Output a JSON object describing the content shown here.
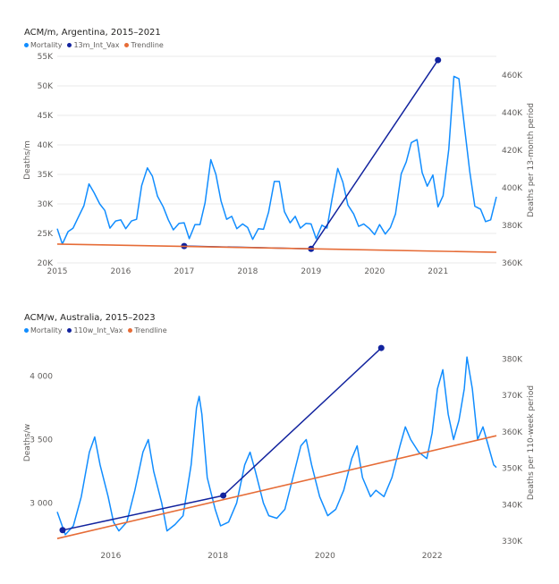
{
  "charts": [
    {
      "title": "ACM/m, Argentina, 2015–2021",
      "legend": [
        {
          "label": "Mortality",
          "color": "#118DFF"
        },
        {
          "label": "13m_Int_Vax",
          "color": "#12239E"
        },
        {
          "label": "Trendline",
          "color": "#E66C37"
        }
      ],
      "y_left_title": "Deaths/m",
      "y_right_title": "Deaths per 13-month period",
      "x_ticks": [
        {
          "label": "2015",
          "x": 2015
        },
        {
          "label": "2016",
          "x": 2016
        },
        {
          "label": "2017",
          "x": 2017
        },
        {
          "label": "2018",
          "x": 2018
        },
        {
          "label": "2019",
          "x": 2019
        },
        {
          "label": "2020",
          "x": 2020
        },
        {
          "label": "2021",
          "x": 2021
        }
      ],
      "y_left_ticks": [
        {
          "label": "20K",
          "v": 20000
        },
        {
          "label": "25K",
          "v": 25000
        },
        {
          "label": "30K",
          "v": 30000
        },
        {
          "label": "35K",
          "v": 35000
        },
        {
          "label": "40K",
          "v": 40000
        },
        {
          "label": "45K",
          "v": 45000
        },
        {
          "label": "50K",
          "v": 50000
        },
        {
          "label": "55K",
          "v": 55000
        }
      ],
      "y_right_ticks": [
        {
          "label": "360K",
          "v": 360000
        },
        {
          "label": "380K",
          "v": 380000
        },
        {
          "label": "400K",
          "v": 400000
        },
        {
          "label": "420K",
          "v": 420000
        },
        {
          "label": "440K",
          "v": 440000
        },
        {
          "label": "460K",
          "v": 460000
        }
      ]
    },
    {
      "title": "ACM/w, Australia, 2015–2023",
      "legend": [
        {
          "label": "Mortality",
          "color": "#118DFF"
        },
        {
          "label": "110w_Int_Vax",
          "color": "#12239E"
        },
        {
          "label": "Trendline",
          "color": "#E66C37"
        }
      ],
      "y_left_title": "Deaths/w",
      "y_right_title": "Deaths per 110-week period",
      "x_ticks": [
        {
          "label": "2016",
          "x": 2016
        },
        {
          "label": "2018",
          "x": 2018
        },
        {
          "label": "2020",
          "x": 2020
        },
        {
          "label": "2022",
          "x": 2022
        }
      ],
      "y_left_ticks": [
        {
          "label": "3 000",
          "v": 3000
        },
        {
          "label": "3 500",
          "v": 3500
        },
        {
          "label": "4 000",
          "v": 4000
        }
      ],
      "y_right_ticks": [
        {
          "label": "330K",
          "v": 330000
        },
        {
          "label": "340K",
          "v": 340000
        },
        {
          "label": "350K",
          "v": 350000
        },
        {
          "label": "360K",
          "v": 360000
        },
        {
          "label": "370K",
          "v": 370000
        },
        {
          "label": "380K",
          "v": 380000
        }
      ]
    }
  ],
  "chart_data": [
    {
      "type": "line",
      "title": "ACM/m, Argentina, 2015–2021",
      "xlabel": "",
      "ylabel": "Deaths/m",
      "y2label": "Deaths per 13-month period",
      "xlim": [
        2015,
        2021.92
      ],
      "ylim": [
        20000,
        55000
      ],
      "y2lim": [
        360000,
        470000
      ],
      "grid": true,
      "legend_position": "top-left",
      "series": [
        {
          "name": "Mortality",
          "axis": "left",
          "color": "#118DFF",
          "points": [
            [
              2015.0,
              25800
            ],
            [
              2015.08,
              23200
            ],
            [
              2015.17,
              25300
            ],
            [
              2015.25,
              25900
            ],
            [
              2015.33,
              27700
            ],
            [
              2015.42,
              29700
            ],
            [
              2015.5,
              33400
            ],
            [
              2015.58,
              31900
            ],
            [
              2015.67,
              30000
            ],
            [
              2015.75,
              28900
            ],
            [
              2015.83,
              25900
            ],
            [
              2015.92,
              27100
            ],
            [
              2016.0,
              27300
            ],
            [
              2016.08,
              25800
            ],
            [
              2016.17,
              27100
            ],
            [
              2016.25,
              27400
            ],
            [
              2016.33,
              33100
            ],
            [
              2016.42,
              36100
            ],
            [
              2016.5,
              34700
            ],
            [
              2016.58,
              31300
            ],
            [
              2016.67,
              29500
            ],
            [
              2016.75,
              27300
            ],
            [
              2016.83,
              25600
            ],
            [
              2016.92,
              26700
            ],
            [
              2017.0,
              26800
            ],
            [
              2017.08,
              24100
            ],
            [
              2017.17,
              26500
            ],
            [
              2017.25,
              26500
            ],
            [
              2017.33,
              30200
            ],
            [
              2017.42,
              37500
            ],
            [
              2017.5,
              35000
            ],
            [
              2017.58,
              30500
            ],
            [
              2017.67,
              27400
            ],
            [
              2017.75,
              27900
            ],
            [
              2017.83,
              25800
            ],
            [
              2017.92,
              26600
            ],
            [
              2018.0,
              26000
            ],
            [
              2018.08,
              24000
            ],
            [
              2018.17,
              25800
            ],
            [
              2018.25,
              25700
            ],
            [
              2018.33,
              28600
            ],
            [
              2018.42,
              33800
            ],
            [
              2018.5,
              33800
            ],
            [
              2018.58,
              28700
            ],
            [
              2018.67,
              26800
            ],
            [
              2018.75,
              27900
            ],
            [
              2018.83,
              25900
            ],
            [
              2018.92,
              26700
            ],
            [
              2019.0,
              26600
            ],
            [
              2019.08,
              24100
            ],
            [
              2019.17,
              26400
            ],
            [
              2019.25,
              25900
            ],
            [
              2019.33,
              30800
            ],
            [
              2019.42,
              36000
            ],
            [
              2019.5,
              33700
            ],
            [
              2019.58,
              29800
            ],
            [
              2019.67,
              28300
            ],
            [
              2019.75,
              26200
            ],
            [
              2019.83,
              26600
            ],
            [
              2019.92,
              25800
            ],
            [
              2020.0,
              24800
            ],
            [
              2020.08,
              26500
            ],
            [
              2020.17,
              24900
            ],
            [
              2020.25,
              26000
            ],
            [
              2020.33,
              28300
            ],
            [
              2020.42,
              35100
            ],
            [
              2020.5,
              37100
            ],
            [
              2020.58,
              40400
            ],
            [
              2020.67,
              40900
            ],
            [
              2020.75,
              35300
            ],
            [
              2020.83,
              33000
            ],
            [
              2020.92,
              34900
            ],
            [
              2021.0,
              29500
            ],
            [
              2021.08,
              31400
            ],
            [
              2021.17,
              39300
            ],
            [
              2021.25,
              51600
            ],
            [
              2021.33,
              51200
            ],
            [
              2021.42,
              42800
            ],
            [
              2021.5,
              35500
            ],
            [
              2021.58,
              29600
            ],
            [
              2021.67,
              29100
            ],
            [
              2021.75,
              27000
            ],
            [
              2021.83,
              27300
            ],
            [
              2021.92,
              31200
            ]
          ]
        },
        {
          "name": "13m_Int_Vax",
          "axis": "right",
          "color": "#12239E",
          "points": [
            [
              2017.0,
              369000
            ],
            [
              2019.0,
              367500
            ],
            [
              2021.0,
              468000
            ]
          ]
        },
        {
          "name": "Trendline",
          "axis": "left",
          "color": "#E66C37",
          "points": [
            [
              2015.0,
              23200
            ],
            [
              2021.92,
              21800
            ]
          ]
        }
      ]
    },
    {
      "type": "line",
      "title": "ACM/w, Australia, 2015–2023",
      "xlabel": "",
      "ylabel": "Deaths/w",
      "y2label": "Deaths per 110-week period",
      "xlim": [
        2015.0,
        2023.2
      ],
      "ylim": [
        2700,
        4250
      ],
      "y2lim": [
        330000,
        384000
      ],
      "grid": false,
      "legend_position": "top-left",
      "series": [
        {
          "name": "Mortality",
          "axis": "left",
          "color": "#118DFF",
          "points": [
            [
              2015.0,
              2930
            ],
            [
              2015.15,
              2750
            ],
            [
              2015.3,
              2820
            ],
            [
              2015.45,
              3050
            ],
            [
              2015.6,
              3400
            ],
            [
              2015.7,
              3520
            ],
            [
              2015.8,
              3300
            ],
            [
              2015.95,
              3050
            ],
            [
              2016.05,
              2850
            ],
            [
              2016.15,
              2780
            ],
            [
              2016.3,
              2850
            ],
            [
              2016.45,
              3100
            ],
            [
              2016.6,
              3400
            ],
            [
              2016.7,
              3500
            ],
            [
              2016.8,
              3250
            ],
            [
              2016.95,
              3000
            ],
            [
              2017.05,
              2780
            ],
            [
              2017.2,
              2830
            ],
            [
              2017.35,
              2900
            ],
            [
              2017.5,
              3300
            ],
            [
              2017.6,
              3750
            ],
            [
              2017.65,
              3840
            ],
            [
              2017.7,
              3700
            ],
            [
              2017.8,
              3200
            ],
            [
              2017.95,
              2950
            ],
            [
              2018.05,
              2820
            ],
            [
              2018.2,
              2850
            ],
            [
              2018.35,
              3000
            ],
            [
              2018.5,
              3300
            ],
            [
              2018.6,
              3400
            ],
            [
              2018.7,
              3250
            ],
            [
              2018.85,
              3000
            ],
            [
              2018.95,
              2900
            ],
            [
              2019.1,
              2880
            ],
            [
              2019.25,
              2950
            ],
            [
              2019.4,
              3200
            ],
            [
              2019.55,
              3450
            ],
            [
              2019.65,
              3500
            ],
            [
              2019.75,
              3300
            ],
            [
              2019.9,
              3050
            ],
            [
              2020.05,
              2900
            ],
            [
              2020.2,
              2950
            ],
            [
              2020.35,
              3100
            ],
            [
              2020.5,
              3350
            ],
            [
              2020.6,
              3450
            ],
            [
              2020.7,
              3200
            ],
            [
              2020.85,
              3050
            ],
            [
              2020.95,
              3100
            ],
            [
              2021.1,
              3050
            ],
            [
              2021.25,
              3200
            ],
            [
              2021.4,
              3450
            ],
            [
              2021.5,
              3600
            ],
            [
              2021.6,
              3500
            ],
            [
              2021.75,
              3400
            ],
            [
              2021.9,
              3350
            ],
            [
              2022.0,
              3550
            ],
            [
              2022.1,
              3900
            ],
            [
              2022.2,
              4050
            ],
            [
              2022.3,
              3700
            ],
            [
              2022.4,
              3500
            ],
            [
              2022.5,
              3650
            ],
            [
              2022.6,
              3900
            ],
            [
              2022.65,
              4150
            ],
            [
              2022.75,
              3900
            ],
            [
              2022.85,
              3500
            ],
            [
              2022.95,
              3600
            ],
            [
              2023.05,
              3450
            ],
            [
              2023.15,
              3300
            ],
            [
              2023.2,
              3280
            ]
          ]
        },
        {
          "name": "110w_Int_Vax",
          "axis": "right",
          "color": "#12239E",
          "points": [
            [
              2015.1,
              333000
            ],
            [
              2018.1,
              342500
            ],
            [
              2021.05,
              383000
            ]
          ]
        },
        {
          "name": "Trendline",
          "axis": "left",
          "color": "#E66C37",
          "points": [
            [
              2015.0,
              2720
            ],
            [
              2023.2,
              3530
            ]
          ]
        }
      ]
    }
  ]
}
